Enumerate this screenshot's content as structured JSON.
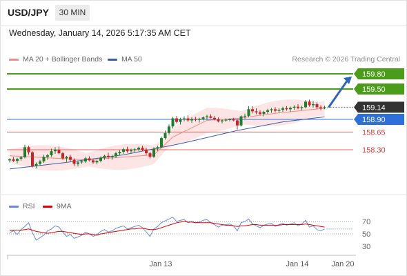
{
  "header": {
    "symbol": "USD/JPY",
    "timeframe": "30 MIN",
    "datetime": "Wednesday, January 14, 2026 5:17:35 AM CET"
  },
  "legend": {
    "ma20": {
      "label": "MA 20 + Bollinger Bands",
      "color": "#f28b82"
    },
    "ma50": {
      "label": "MA 50",
      "color": "#3a5da8"
    },
    "credit": "Research © 2026 Trading Central"
  },
  "rsi_legend": {
    "rsi": {
      "label": "RSI",
      "color": "#6a8ad6"
    },
    "ma9": {
      "label": "9MA",
      "color": "#e00000"
    }
  },
  "chart_data": [
    {
      "type": "candlestick",
      "x": {
        "labels": [
          "Jan 13",
          "Jan 14",
          "Jan 20"
        ]
      },
      "y": {
        "range": [
          157.85,
          159.95
        ]
      },
      "levels": [
        {
          "value": 159.8,
          "label": "159.80",
          "kind": "resistance",
          "color": "#4a9c1a"
        },
        {
          "value": 159.5,
          "label": "159.50",
          "kind": "resistance",
          "color": "#4a9c1a"
        },
        {
          "value": 159.14,
          "label": "159.14",
          "kind": "last_price",
          "color": "#333333"
        },
        {
          "value": 158.9,
          "label": "158.90",
          "kind": "pivot",
          "color": "#2f6fd8"
        },
        {
          "value": 158.65,
          "label": "158.65",
          "kind": "support",
          "color": "#e06666"
        },
        {
          "value": 158.3,
          "label": "158.30",
          "kind": "support",
          "color": "#e06666"
        }
      ],
      "forecast_arrow": {
        "from": 159.14,
        "to": 159.8
      },
      "candles": [
        [
          158.09,
          158.13,
          158.05,
          158.11
        ],
        [
          158.11,
          158.15,
          158.06,
          158.08
        ],
        [
          158.08,
          158.14,
          158.03,
          158.12
        ],
        [
          158.12,
          158.18,
          158.08,
          158.15
        ],
        [
          158.15,
          158.4,
          158.13,
          158.35
        ],
        [
          158.35,
          158.38,
          158.2,
          158.25
        ],
        [
          158.25,
          158.27,
          157.95,
          157.98
        ],
        [
          157.98,
          158.05,
          157.93,
          158.02
        ],
        [
          158.02,
          158.1,
          157.99,
          158.07
        ],
        [
          158.07,
          158.2,
          158.04,
          158.16
        ],
        [
          158.16,
          158.22,
          158.1,
          158.19
        ],
        [
          158.19,
          158.32,
          158.16,
          158.27
        ],
        [
          158.27,
          158.35,
          158.22,
          158.3
        ],
        [
          158.3,
          158.36,
          158.21,
          158.23
        ],
        [
          158.23,
          158.26,
          158.1,
          158.13
        ],
        [
          158.13,
          158.18,
          158.06,
          158.16
        ],
        [
          158.16,
          158.2,
          158.06,
          158.1
        ],
        [
          158.1,
          158.13,
          157.98,
          158.02
        ],
        [
          158.02,
          158.08,
          157.97,
          158.05
        ],
        [
          158.05,
          158.1,
          158.02,
          158.07
        ],
        [
          158.07,
          158.16,
          158.04,
          158.13
        ],
        [
          158.13,
          158.17,
          158.07,
          158.09
        ],
        [
          158.09,
          158.12,
          158.02,
          158.05
        ],
        [
          158.05,
          158.1,
          158.01,
          158.08
        ],
        [
          158.08,
          158.17,
          158.05,
          158.14
        ],
        [
          158.14,
          158.2,
          158.1,
          158.18
        ],
        [
          158.18,
          158.24,
          158.12,
          158.15
        ],
        [
          158.15,
          158.2,
          158.1,
          158.17
        ],
        [
          158.17,
          158.26,
          158.14,
          158.23
        ],
        [
          158.23,
          158.29,
          158.19,
          158.26
        ],
        [
          158.26,
          158.34,
          158.22,
          158.31
        ],
        [
          158.31,
          158.36,
          158.24,
          158.27
        ],
        [
          158.27,
          158.32,
          158.22,
          158.29
        ],
        [
          158.29,
          158.33,
          158.25,
          158.31
        ],
        [
          158.31,
          158.36,
          158.28,
          158.34
        ],
        [
          158.34,
          158.38,
          158.27,
          158.3
        ],
        [
          158.3,
          158.34,
          158.2,
          158.23
        ],
        [
          158.23,
          158.26,
          158.13,
          158.16
        ],
        [
          158.16,
          158.35,
          158.14,
          158.32
        ],
        [
          158.32,
          158.38,
          158.28,
          158.35
        ],
        [
          158.35,
          158.56,
          158.33,
          158.53
        ],
        [
          158.53,
          158.68,
          158.5,
          158.63
        ],
        [
          158.63,
          158.8,
          158.6,
          158.76
        ],
        [
          158.76,
          158.95,
          158.72,
          158.92
        ],
        [
          158.92,
          158.97,
          158.82,
          158.85
        ],
        [
          158.85,
          158.93,
          158.8,
          158.9
        ],
        [
          158.9,
          158.96,
          158.86,
          158.92
        ],
        [
          158.92,
          158.98,
          158.85,
          158.88
        ],
        [
          158.88,
          158.94,
          158.83,
          158.91
        ],
        [
          158.91,
          158.95,
          158.86,
          158.89
        ],
        [
          158.89,
          158.93,
          158.84,
          158.91
        ],
        [
          158.91,
          158.96,
          158.88,
          158.94
        ],
        [
          158.94,
          158.99,
          158.89,
          158.96
        ],
        [
          158.96,
          159.0,
          158.92,
          158.93
        ],
        [
          158.93,
          158.97,
          158.88,
          158.9
        ],
        [
          158.9,
          158.94,
          158.84,
          158.86
        ],
        [
          158.86,
          158.9,
          158.82,
          158.88
        ],
        [
          158.88,
          158.92,
          158.85,
          158.89
        ],
        [
          158.89,
          158.92,
          158.86,
          158.9
        ],
        [
          158.9,
          158.93,
          158.86,
          158.88
        ],
        [
          158.88,
          158.9,
          158.7,
          158.78
        ],
        [
          158.78,
          158.98,
          158.76,
          158.96
        ],
        [
          158.96,
          159.01,
          158.91,
          158.97
        ],
        [
          158.97,
          159.16,
          158.94,
          159.1
        ],
        [
          159.1,
          159.16,
          159.02,
          159.06
        ],
        [
          159.06,
          159.12,
          159.0,
          159.04
        ],
        [
          159.04,
          159.08,
          158.98,
          159.01
        ],
        [
          159.01,
          159.07,
          158.96,
          159.05
        ],
        [
          159.05,
          159.11,
          159.01,
          159.08
        ],
        [
          159.08,
          159.13,
          159.03,
          159.1
        ],
        [
          159.1,
          159.14,
          159.04,
          159.07
        ],
        [
          159.07,
          159.12,
          159.03,
          159.09
        ],
        [
          159.09,
          159.15,
          159.05,
          159.12
        ],
        [
          159.12,
          159.16,
          159.07,
          159.1
        ],
        [
          159.1,
          159.15,
          159.05,
          159.13
        ],
        [
          159.13,
          159.18,
          159.09,
          159.15
        ],
        [
          159.15,
          159.2,
          159.1,
          159.12
        ],
        [
          159.12,
          159.17,
          159.08,
          159.14
        ],
        [
          159.14,
          159.28,
          159.12,
          159.25
        ],
        [
          159.25,
          159.29,
          159.15,
          159.18
        ],
        [
          159.18,
          159.26,
          159.13,
          159.2
        ],
        [
          159.2,
          159.24,
          159.1,
          159.14
        ],
        [
          159.14,
          159.18,
          159.08,
          159.12
        ],
        [
          159.12,
          159.17,
          159.1,
          159.14
        ]
      ],
      "ma20": [
        [
          0,
          158.18
        ],
        [
          20,
          158.1
        ],
        [
          38,
          158.2
        ],
        [
          43,
          158.55
        ],
        [
          52,
          158.88
        ],
        [
          60,
          158.92
        ],
        [
          70,
          159.02
        ],
        [
          83,
          159.12
        ]
      ],
      "ma50": [
        [
          0,
          157.92
        ],
        [
          15,
          158.05
        ],
        [
          30,
          158.2
        ],
        [
          45,
          158.42
        ],
        [
          60,
          158.68
        ],
        [
          72,
          158.85
        ],
        [
          83,
          158.95
        ]
      ]
    },
    {
      "type": "line",
      "name": "RSI",
      "y": {
        "ticks": [
          70,
          50,
          30
        ]
      },
      "rsi": [
        52,
        55,
        49,
        57,
        62,
        68,
        52,
        40,
        44,
        48,
        55,
        58,
        63,
        61,
        53,
        46,
        49,
        43,
        45,
        48,
        53,
        50,
        46,
        49,
        54,
        57,
        53,
        55,
        59,
        61,
        63,
        58,
        60,
        62,
        64,
        60,
        53,
        46,
        58,
        62,
        68,
        71,
        74,
        77,
        70,
        72,
        73,
        68,
        70,
        68,
        69,
        72,
        73,
        68,
        65,
        61,
        64,
        65,
        66,
        63,
        55,
        68,
        70,
        74,
        66,
        63,
        60,
        64,
        66,
        67,
        62,
        65,
        67,
        64,
        66,
        68,
        63,
        66,
        72,
        61,
        63,
        57,
        55,
        58
      ],
      "ma9": [
        55,
        56,
        56,
        56,
        57,
        58,
        56,
        54,
        53,
        52,
        51,
        52,
        53,
        54,
        54,
        53,
        52,
        51,
        50,
        49,
        50,
        50,
        49,
        48,
        50,
        51,
        52,
        53,
        54,
        55,
        56,
        57,
        58,
        58,
        59,
        59,
        58,
        57,
        57,
        58,
        60,
        62,
        64,
        66,
        68,
        69,
        70,
        69,
        69,
        68,
        68,
        68,
        68,
        68,
        67,
        66,
        65,
        64,
        64,
        63,
        62,
        63,
        63,
        64,
        65,
        65,
        64,
        64,
        64,
        64,
        64,
        64,
        65,
        65,
        65,
        65,
        65,
        65,
        66,
        65,
        64,
        63,
        62,
        61
      ]
    }
  ]
}
